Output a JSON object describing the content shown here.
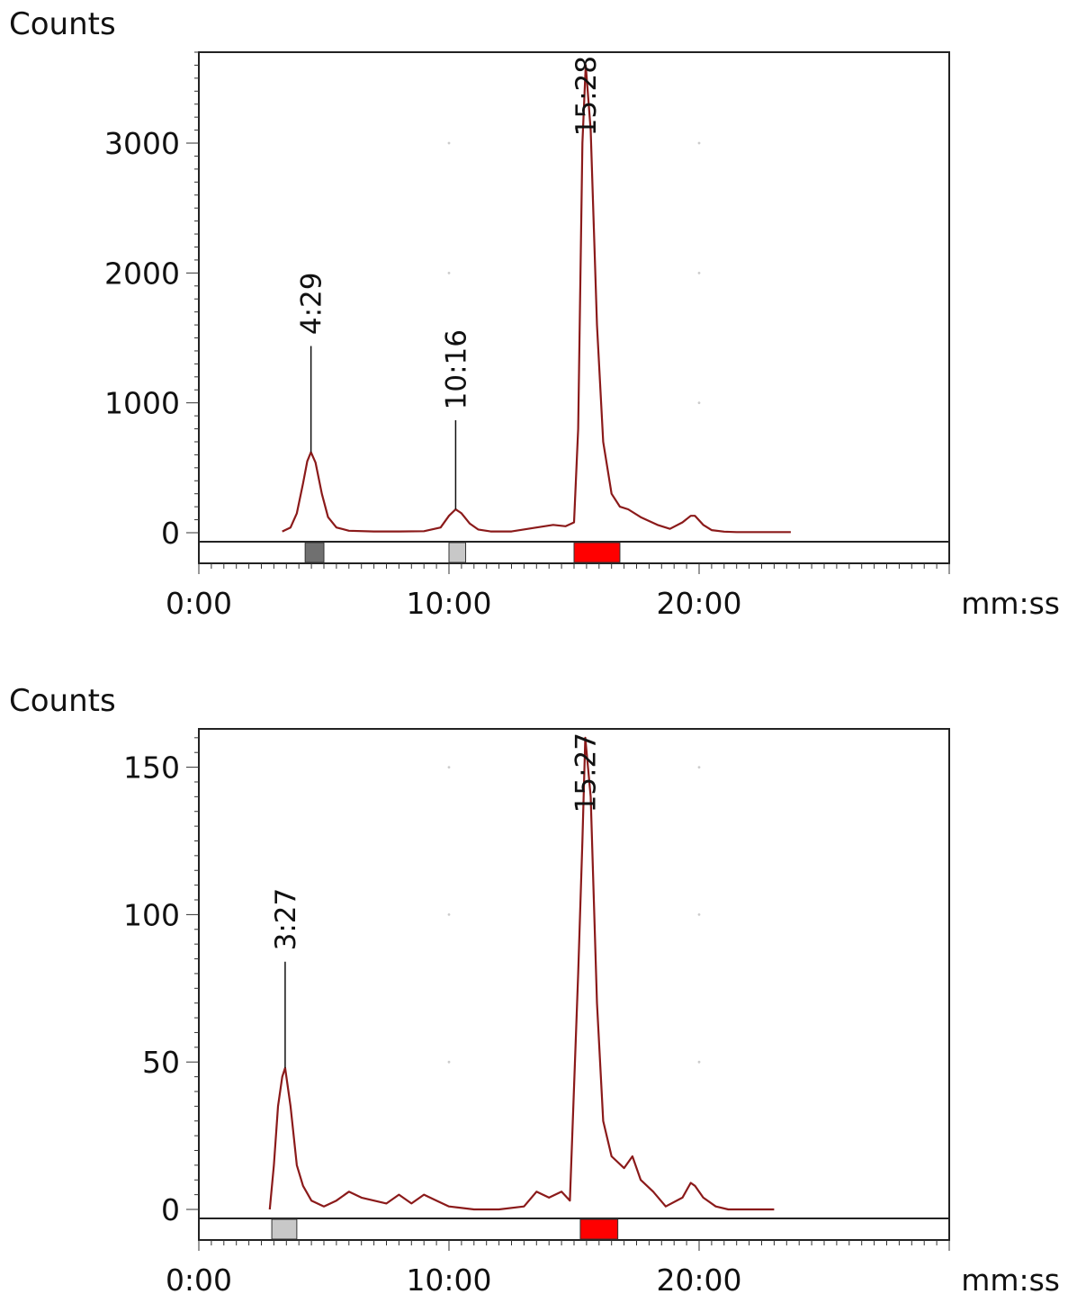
{
  "chart_data": [
    {
      "type": "line",
      "ylabel": "Counts",
      "xlabel": "mm:ss",
      "xlim": [
        "0:00",
        "30:00"
      ],
      "ylim": [
        0,
        3700
      ],
      "y_ticks": [
        0,
        1000,
        2000,
        3000
      ],
      "x_ticks": [
        "0:00",
        "10:00",
        "20:00"
      ],
      "line_color": "#8b1a1a",
      "series": [
        {
          "x": [
            "3:20",
            "3:40",
            "3:55",
            "4:10",
            "4:20",
            "4:29",
            "4:40",
            "4:55",
            "5:10",
            "5:30",
            "6:00",
            "7:00",
            "8:00",
            "9:00",
            "9:40",
            "10:00",
            "10:16",
            "10:30",
            "10:50",
            "11:10",
            "11:40",
            "12:30",
            "13:30",
            "14:10",
            "14:40",
            "15:00",
            "15:10",
            "15:20",
            "15:28",
            "15:40",
            "15:55",
            "16:10",
            "16:30",
            "16:50",
            "17:10",
            "17:40",
            "18:20",
            "18:50",
            "19:20",
            "19:40",
            "19:50",
            "20:10",
            "20:30",
            "21:00",
            "21:30",
            "22:40",
            "23:40"
          ],
          "values": [
            10,
            40,
            150,
            380,
            550,
            620,
            540,
            300,
            120,
            40,
            15,
            10,
            10,
            12,
            40,
            130,
            180,
            150,
            70,
            25,
            10,
            10,
            40,
            60,
            50,
            80,
            800,
            3000,
            3600,
            3100,
            1600,
            700,
            300,
            200,
            180,
            120,
            60,
            30,
            80,
            130,
            130,
            60,
            20,
            8,
            5,
            5,
            5
          ]
        }
      ],
      "peak_labels": [
        {
          "text": "4:29",
          "x": "4:29",
          "y": 620
        },
        {
          "text": "10:16",
          "x": "10:16",
          "y": 180
        },
        {
          "text": "15:28",
          "x": "15:28",
          "y": 3600
        }
      ],
      "range_markers": [
        {
          "start": "4:15",
          "end": "5:00",
          "color": "#707070"
        },
        {
          "start": "10:00",
          "end": "10:40",
          "color": "#c8c8c8"
        },
        {
          "start": "15:00",
          "end": "16:50",
          "color": "#ff0000"
        }
      ]
    },
    {
      "type": "line",
      "ylabel": "Counts",
      "xlabel": "mm:ss",
      "xlim": [
        "0:00",
        "30:00"
      ],
      "ylim": [
        0,
        163
      ],
      "y_ticks": [
        0,
        50,
        100,
        150
      ],
      "x_ticks": [
        "0:00",
        "10:00",
        "20:00"
      ],
      "line_color": "#8b1a1a",
      "series": [
        {
          "x": [
            "2:50",
            "3:00",
            "3:10",
            "3:20",
            "3:27",
            "3:40",
            "3:55",
            "4:10",
            "4:30",
            "5:00",
            "5:30",
            "6:00",
            "6:30",
            "7:00",
            "7:30",
            "8:00",
            "8:30",
            "9:00",
            "9:30",
            "10:00",
            "11:00",
            "12:00",
            "13:00",
            "13:30",
            "14:00",
            "14:30",
            "14:50",
            "15:10",
            "15:20",
            "15:27",
            "15:40",
            "15:55",
            "16:10",
            "16:30",
            "17:00",
            "17:20",
            "17:40",
            "18:10",
            "18:40",
            "19:20",
            "19:40",
            "19:50",
            "20:10",
            "20:40",
            "21:10",
            "22:00",
            "23:00"
          ],
          "values": [
            0,
            15,
            35,
            45,
            48,
            35,
            15,
            8,
            3,
            1,
            3,
            6,
            4,
            3,
            2,
            5,
            2,
            5,
            3,
            1,
            0,
            0,
            1,
            6,
            4,
            6,
            3,
            80,
            125,
            160,
            140,
            70,
            30,
            18,
            14,
            18,
            10,
            6,
            1,
            4,
            9,
            8,
            4,
            1,
            0,
            0,
            0
          ]
        }
      ],
      "peak_labels": [
        {
          "text": "3:27",
          "x": "3:27",
          "y": 48
        },
        {
          "text": "15:27",
          "x": "15:27",
          "y": 160
        }
      ],
      "range_markers": [
        {
          "start": "2:55",
          "end": "3:55",
          "color": "#c8c8c8"
        },
        {
          "start": "15:15",
          "end": "16:45",
          "color": "#ff0000"
        }
      ]
    }
  ]
}
